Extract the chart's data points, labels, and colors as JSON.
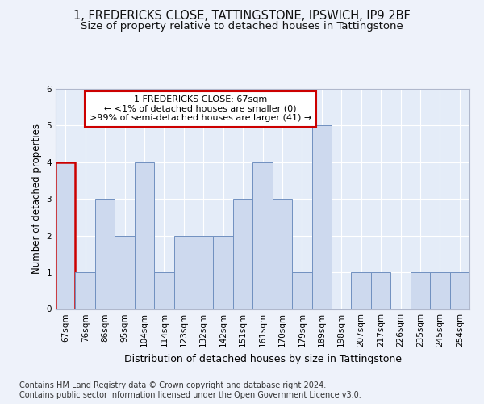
{
  "title1": "1, FREDERICKS CLOSE, TATTINGSTONE, IPSWICH, IP9 2BF",
  "title2": "Size of property relative to detached houses in Tattingstone",
  "xlabel": "Distribution of detached houses by size in Tattingstone",
  "ylabel": "Number of detached properties",
  "categories": [
    "67sqm",
    "76sqm",
    "86sqm",
    "95sqm",
    "104sqm",
    "114sqm",
    "123sqm",
    "132sqm",
    "142sqm",
    "151sqm",
    "161sqm",
    "170sqm",
    "179sqm",
    "189sqm",
    "198sqm",
    "207sqm",
    "217sqm",
    "226sqm",
    "235sqm",
    "245sqm",
    "254sqm"
  ],
  "values": [
    4,
    1,
    3,
    2,
    4,
    1,
    2,
    2,
    2,
    3,
    4,
    3,
    1,
    5,
    0,
    1,
    1,
    0,
    1,
    1,
    1
  ],
  "bar_color": "#cdd9ee",
  "bar_edge_color": "#7090c0",
  "highlight_bar_edge_color": "#cc0000",
  "annotation_text": "1 FREDERICKS CLOSE: 67sqm\n← <1% of detached houses are smaller (0)\n>99% of semi-detached houses are larger (41) →",
  "annotation_box_edge_color": "#cc0000",
  "ylim": [
    0,
    6
  ],
  "yticks": [
    0,
    1,
    2,
    3,
    4,
    5,
    6
  ],
  "footnote1": "Contains HM Land Registry data © Crown copyright and database right 2024.",
  "footnote2": "Contains public sector information licensed under the Open Government Licence v3.0.",
  "background_color": "#eef2fa",
  "plot_bg_color": "#e4ecf8",
  "grid_color": "#ffffff",
  "title1_fontsize": 10.5,
  "title2_fontsize": 9.5,
  "xlabel_fontsize": 9,
  "ylabel_fontsize": 8.5,
  "tick_fontsize": 7.5,
  "annotation_fontsize": 8,
  "footnote_fontsize": 7
}
